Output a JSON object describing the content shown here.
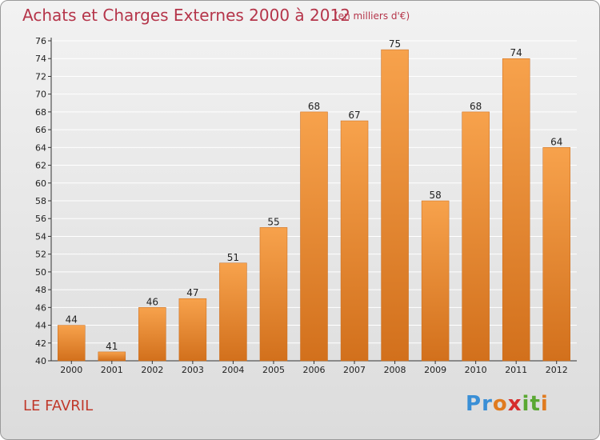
{
  "header": {
    "title": "Achats et Charges Externes 2000 à 2012",
    "subtitle": "(en milliers d'€)"
  },
  "footer": {
    "place": "LE FAVRIL",
    "logo_letters": [
      "P",
      "r",
      "o",
      "x",
      "i",
      "t",
      "i"
    ],
    "logo_colors": [
      "#3a8fd6",
      "#3a8fd6",
      "#e07b1f",
      "#d62d2d",
      "#5aa832",
      "#5aa832",
      "#e07b1f"
    ]
  },
  "colors": {
    "bar_top": "#f7a24c",
    "bar_bottom": "#d2701c",
    "axis": "#333333",
    "grid": "#ffffff"
  },
  "chart_data": {
    "type": "bar",
    "categories": [
      "2000",
      "2001",
      "2002",
      "2003",
      "2004",
      "2005",
      "2006",
      "2007",
      "2008",
      "2009",
      "2010",
      "2011",
      "2012"
    ],
    "values": [
      44,
      41,
      46,
      47,
      51,
      55,
      68,
      67,
      75,
      58,
      68,
      74,
      64
    ],
    "title": "Achats et Charges Externes 2000 à 2012",
    "subtitle": "(en milliers d'€)",
    "xlabel": "",
    "ylabel": "",
    "ylim": [
      40,
      76
    ],
    "yticks": [
      40,
      42,
      44,
      46,
      48,
      50,
      52,
      54,
      56,
      58,
      60,
      62,
      64,
      66,
      68,
      70,
      72,
      74,
      76
    ],
    "grid": true,
    "data_labels": true
  }
}
